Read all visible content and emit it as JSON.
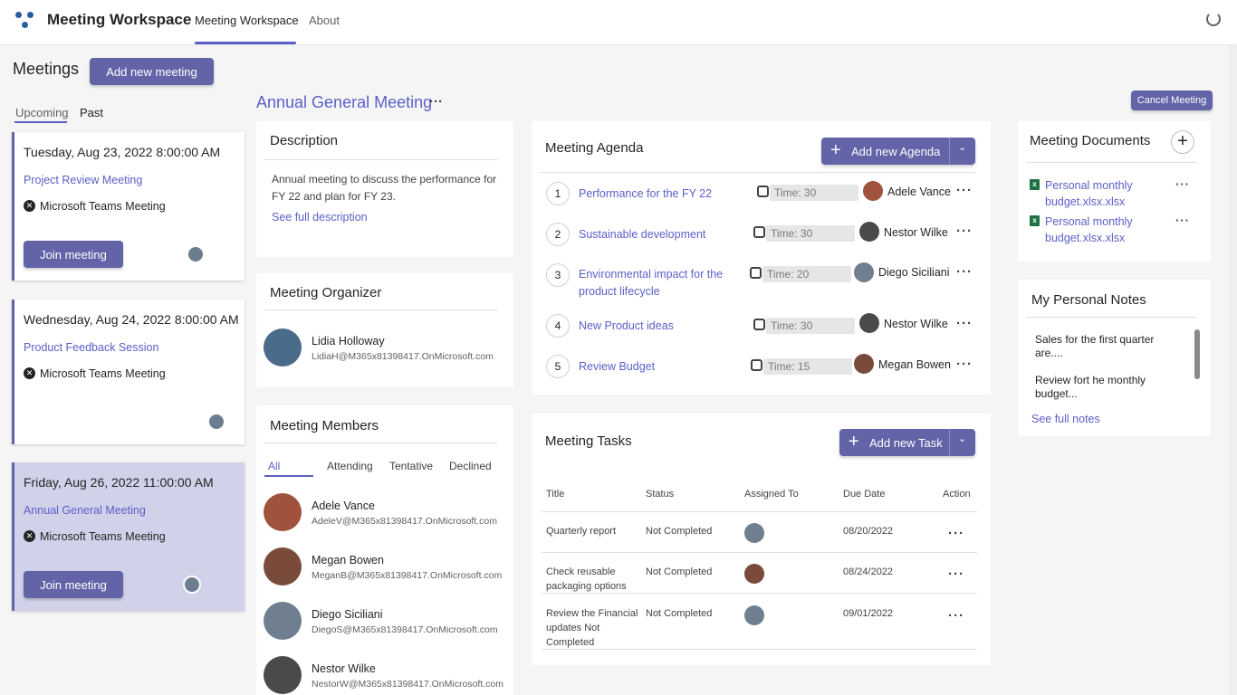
{
  "app": {
    "title": "Meeting Workspace",
    "tabs": [
      {
        "label": "Meeting Workspace"
      },
      {
        "label": "About"
      }
    ]
  },
  "meetings": {
    "heading": "Meetings",
    "add_button": "Add new meeting",
    "filters": [
      {
        "label": "Upcoming"
      },
      {
        "label": "Past"
      }
    ],
    "items": [
      {
        "date": "Tuesday, Aug 23, 2022 8:00:00 AM",
        "title": "Project Review Meeting",
        "kind": "Microsoft Teams Meeting",
        "join_label": "Join meeting"
      },
      {
        "date": "Wednesday, Aug 24, 2022 8:00:00 AM",
        "title": "Product Feedback Session",
        "kind": "Microsoft Teams Meeting"
      },
      {
        "date": "Friday, Aug 26, 2022 11:00:00 AM",
        "title": "Annual General Meeting",
        "kind": "Microsoft Teams Meeting",
        "join_label": "Join meeting"
      }
    ]
  },
  "selected": {
    "title": "Annual General Meeting",
    "more": "···",
    "cancel_button": "Cancel Meeting"
  },
  "description": {
    "heading": "Description",
    "text": "Annual meeting to discuss the performance for FY 22 and plan for FY 23.",
    "link": "See full description"
  },
  "organizer": {
    "heading": "Meeting Organizer",
    "name": "Lidia Holloway",
    "email": "LidiaH@M365x81398417.OnMicrosoft.com"
  },
  "members": {
    "heading": "Meeting Members",
    "filters": [
      {
        "label": "All"
      },
      {
        "label": "Attending"
      },
      {
        "label": "Tentative"
      },
      {
        "label": "Declined"
      }
    ],
    "list": [
      {
        "name": "Adele Vance",
        "email": "AdeleV@M365x81398417.OnMicrosoft.com"
      },
      {
        "name": "Megan Bowen",
        "email": "MeganB@M365x81398417.OnMicrosoft.com"
      },
      {
        "name": "Diego Siciliani",
        "email": "DiegoS@M365x81398417.OnMicrosoft.com"
      },
      {
        "name": "Nestor Wilke",
        "email": "NestorW@M365x81398417.OnMicrosoft.com"
      }
    ]
  },
  "agenda": {
    "heading": "Meeting Agenda",
    "add_button": "Add new Agenda",
    "items": [
      {
        "num": "1",
        "title": "Performance for the FY 22",
        "time": "Time: 30",
        "person": "Adele Vance"
      },
      {
        "num": "2",
        "title": "Sustainable development",
        "time": "Time: 30",
        "person": "Nestor Wilke"
      },
      {
        "num": "3",
        "title": "Environmental impact for the",
        "title2": "product lifecycle",
        "time": "Time: 20",
        "person": "Diego Siciliani"
      },
      {
        "num": "4",
        "title": "New Product ideas",
        "time": "Time: 30",
        "person": "Nestor Wilke"
      },
      {
        "num": "5",
        "title": "Review Budget",
        "time": "Time: 15",
        "person": "Megan Bowen"
      }
    ]
  },
  "tasks": {
    "heading": "Meeting Tasks",
    "add_button": "Add new Task",
    "columns": [
      "Title",
      "Status",
      "Assigned To",
      "Due Date",
      "Action"
    ],
    "rows": [
      {
        "title": "Quarterly report",
        "status": "Not Completed",
        "due": "08/20/2022"
      },
      {
        "title": "Check reusable packaging options",
        "status": "Not Completed",
        "due": "08/24/2022"
      },
      {
        "title": "Review the Financial updates Not Completed",
        "status": "Not Completed",
        "due": "09/01/2022"
      }
    ]
  },
  "documents": {
    "heading": "Meeting Documents",
    "items": [
      {
        "name": "Personal monthly",
        "name2": "budget.xlsx.xlsx"
      },
      {
        "name": "Personal monthly",
        "name2": "budget.xlsx.xlsx"
      }
    ]
  },
  "notes": {
    "heading": "My Personal Notes",
    "items": [
      {
        "line1": "Sales for the first quarter",
        "line2": "are...."
      },
      {
        "line1": "Review fort he monthly",
        "line2": "budget..."
      }
    ],
    "link": "See full notes"
  }
}
